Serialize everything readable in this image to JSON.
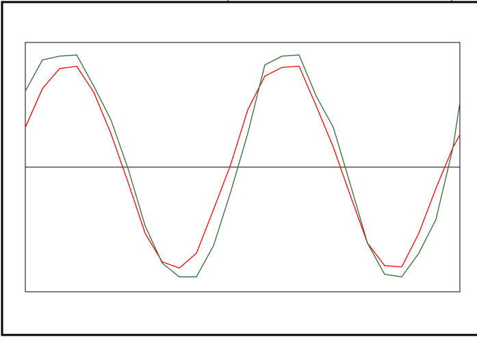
{
  "chart_data": {
    "type": "line",
    "x": [
      0,
      25,
      50,
      75,
      100,
      125,
      150,
      175,
      200,
      225,
      250,
      275,
      300,
      325,
      350,
      375,
      400,
      425,
      450,
      475,
      500,
      525,
      550,
      575,
      600,
      625,
      635
    ],
    "xlim": [
      0,
      635
    ],
    "ylim": [
      -1,
      1
    ],
    "series": [
      {
        "color": "#ff0000",
        "values": [
          0.32,
          0.63,
          0.79,
          0.81,
          0.6,
          0.27,
          -0.12,
          -0.53,
          -0.76,
          -0.81,
          -0.69,
          -0.34,
          0.02,
          0.46,
          0.73,
          0.8,
          0.81,
          0.49,
          0.16,
          -0.23,
          -0.61,
          -0.79,
          -0.8,
          -0.53,
          -0.17,
          0.16,
          0.26
        ]
      },
      {
        "color": "#2f6a2f",
        "values": [
          0.61,
          0.86,
          0.89,
          0.9,
          0.65,
          0.38,
          -0.01,
          -0.47,
          -0.77,
          -0.88,
          -0.88,
          -0.63,
          -0.2,
          0.27,
          0.82,
          0.89,
          0.9,
          0.57,
          0.32,
          -0.14,
          -0.61,
          -0.86,
          -0.88,
          -0.69,
          -0.42,
          0.16,
          0.52
        ]
      }
    ]
  }
}
